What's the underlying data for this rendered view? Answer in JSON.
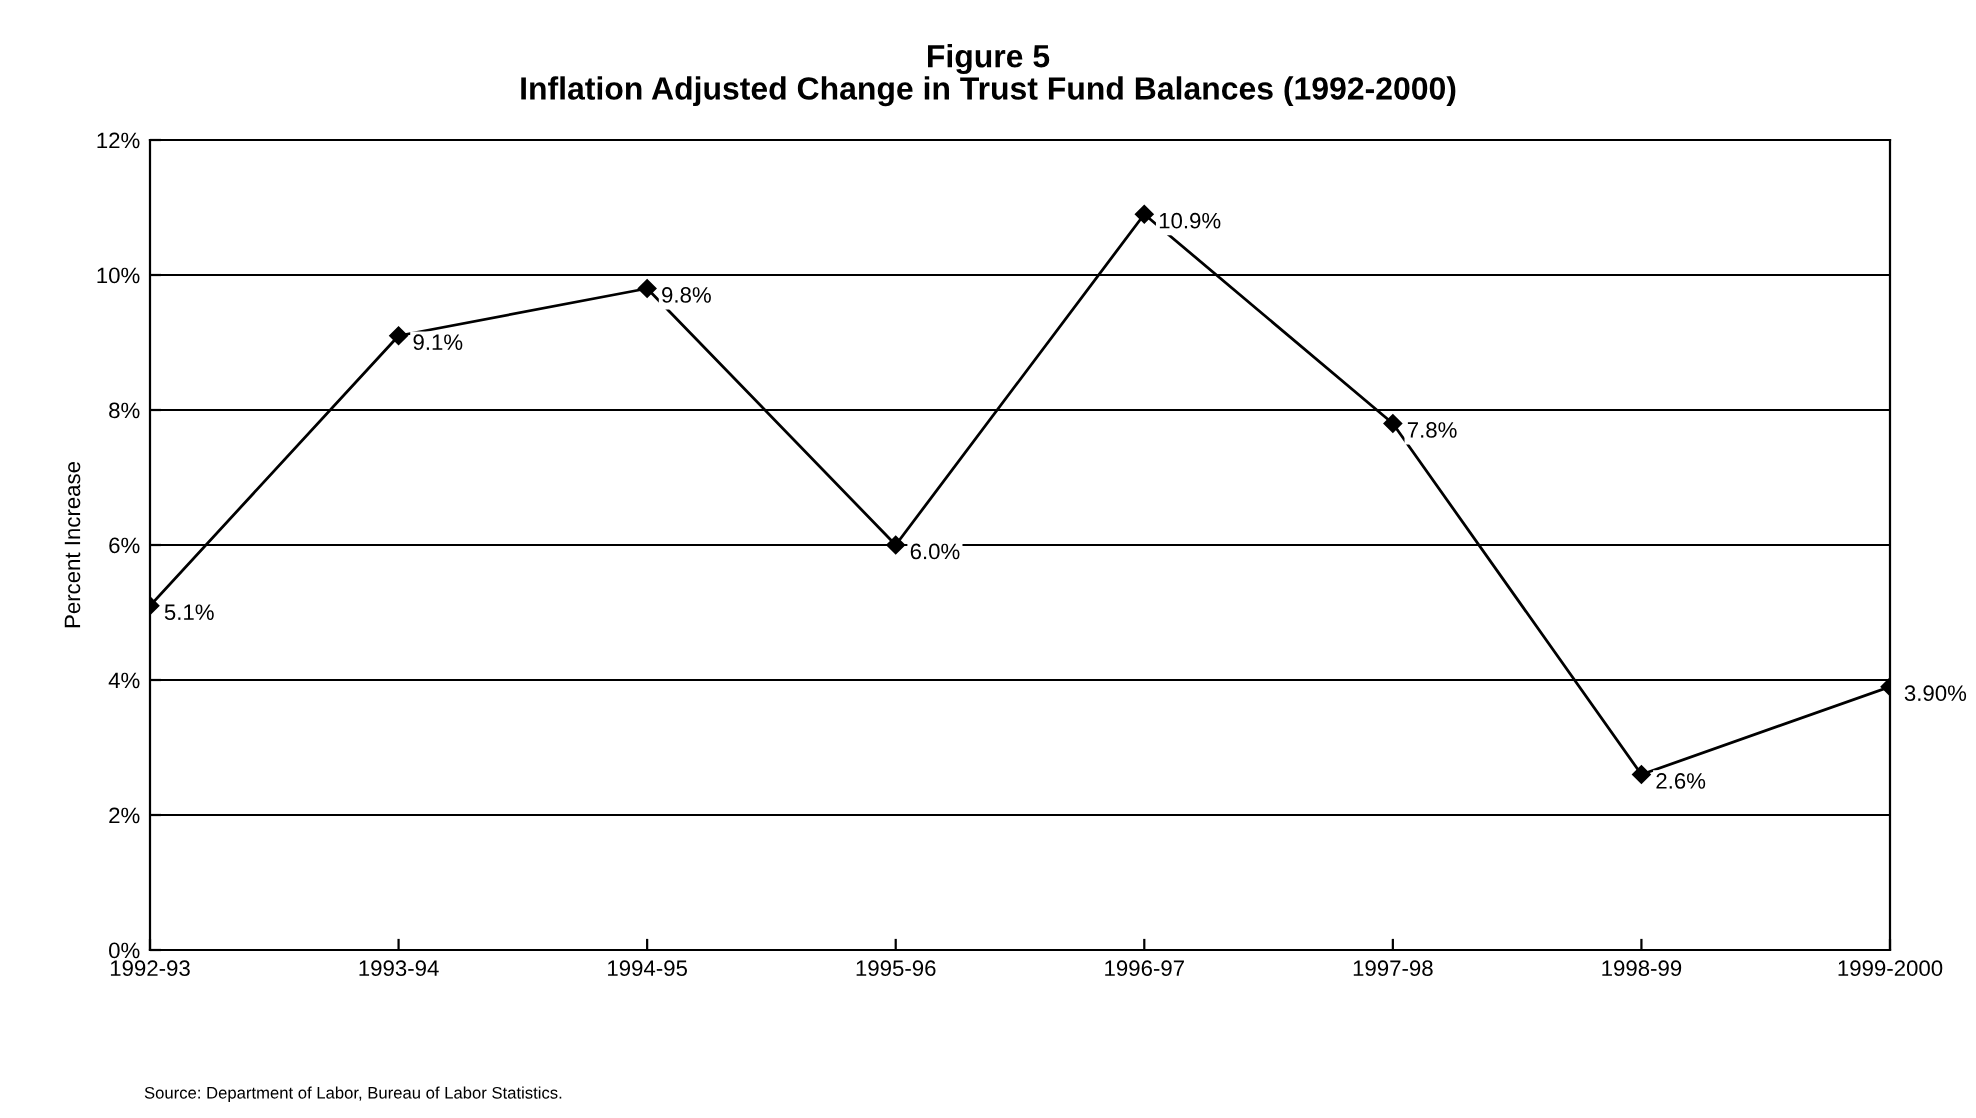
{
  "chart_data": {
    "type": "line",
    "title": "Figure 5",
    "subtitle": "Inflation Adjusted Change in Trust Fund Balances (1992-2000)",
    "ylabel": "Percent Increase",
    "categories": [
      "1992-93",
      "1993-94",
      "1994-95",
      "1995-96",
      "1996-97",
      "1997-98",
      "1998-99",
      "1999-2000"
    ],
    "series": [
      {
        "color": "#000000",
        "values": [
          5.1,
          9.1,
          9.8,
          6.0,
          10.9,
          7.8,
          2.6,
          3.9
        ],
        "value_labels": [
          "5.1%",
          "9.1%",
          "9.8%",
          "6.0%",
          "10.9%",
          "7.8%",
          "2.6%",
          "3.90%"
        ]
      }
    ],
    "ylim": [
      0,
      12
    ],
    "yticks": [
      {
        "value": 0,
        "label": "0%"
      },
      {
        "value": 2,
        "label": "2%"
      },
      {
        "value": 4,
        "label": "4%"
      },
      {
        "value": 6,
        "label": "6%"
      },
      {
        "value": 8,
        "label": "8%"
      },
      {
        "value": 10,
        "label": "10%"
      },
      {
        "value": 12,
        "label": "12%"
      }
    ],
    "grid": "y",
    "marker": "diamond",
    "line_style": "solid",
    "legend": false,
    "annotations": [
      "Source: Department of Labor, Bureau of Labor Statistics."
    ]
  }
}
